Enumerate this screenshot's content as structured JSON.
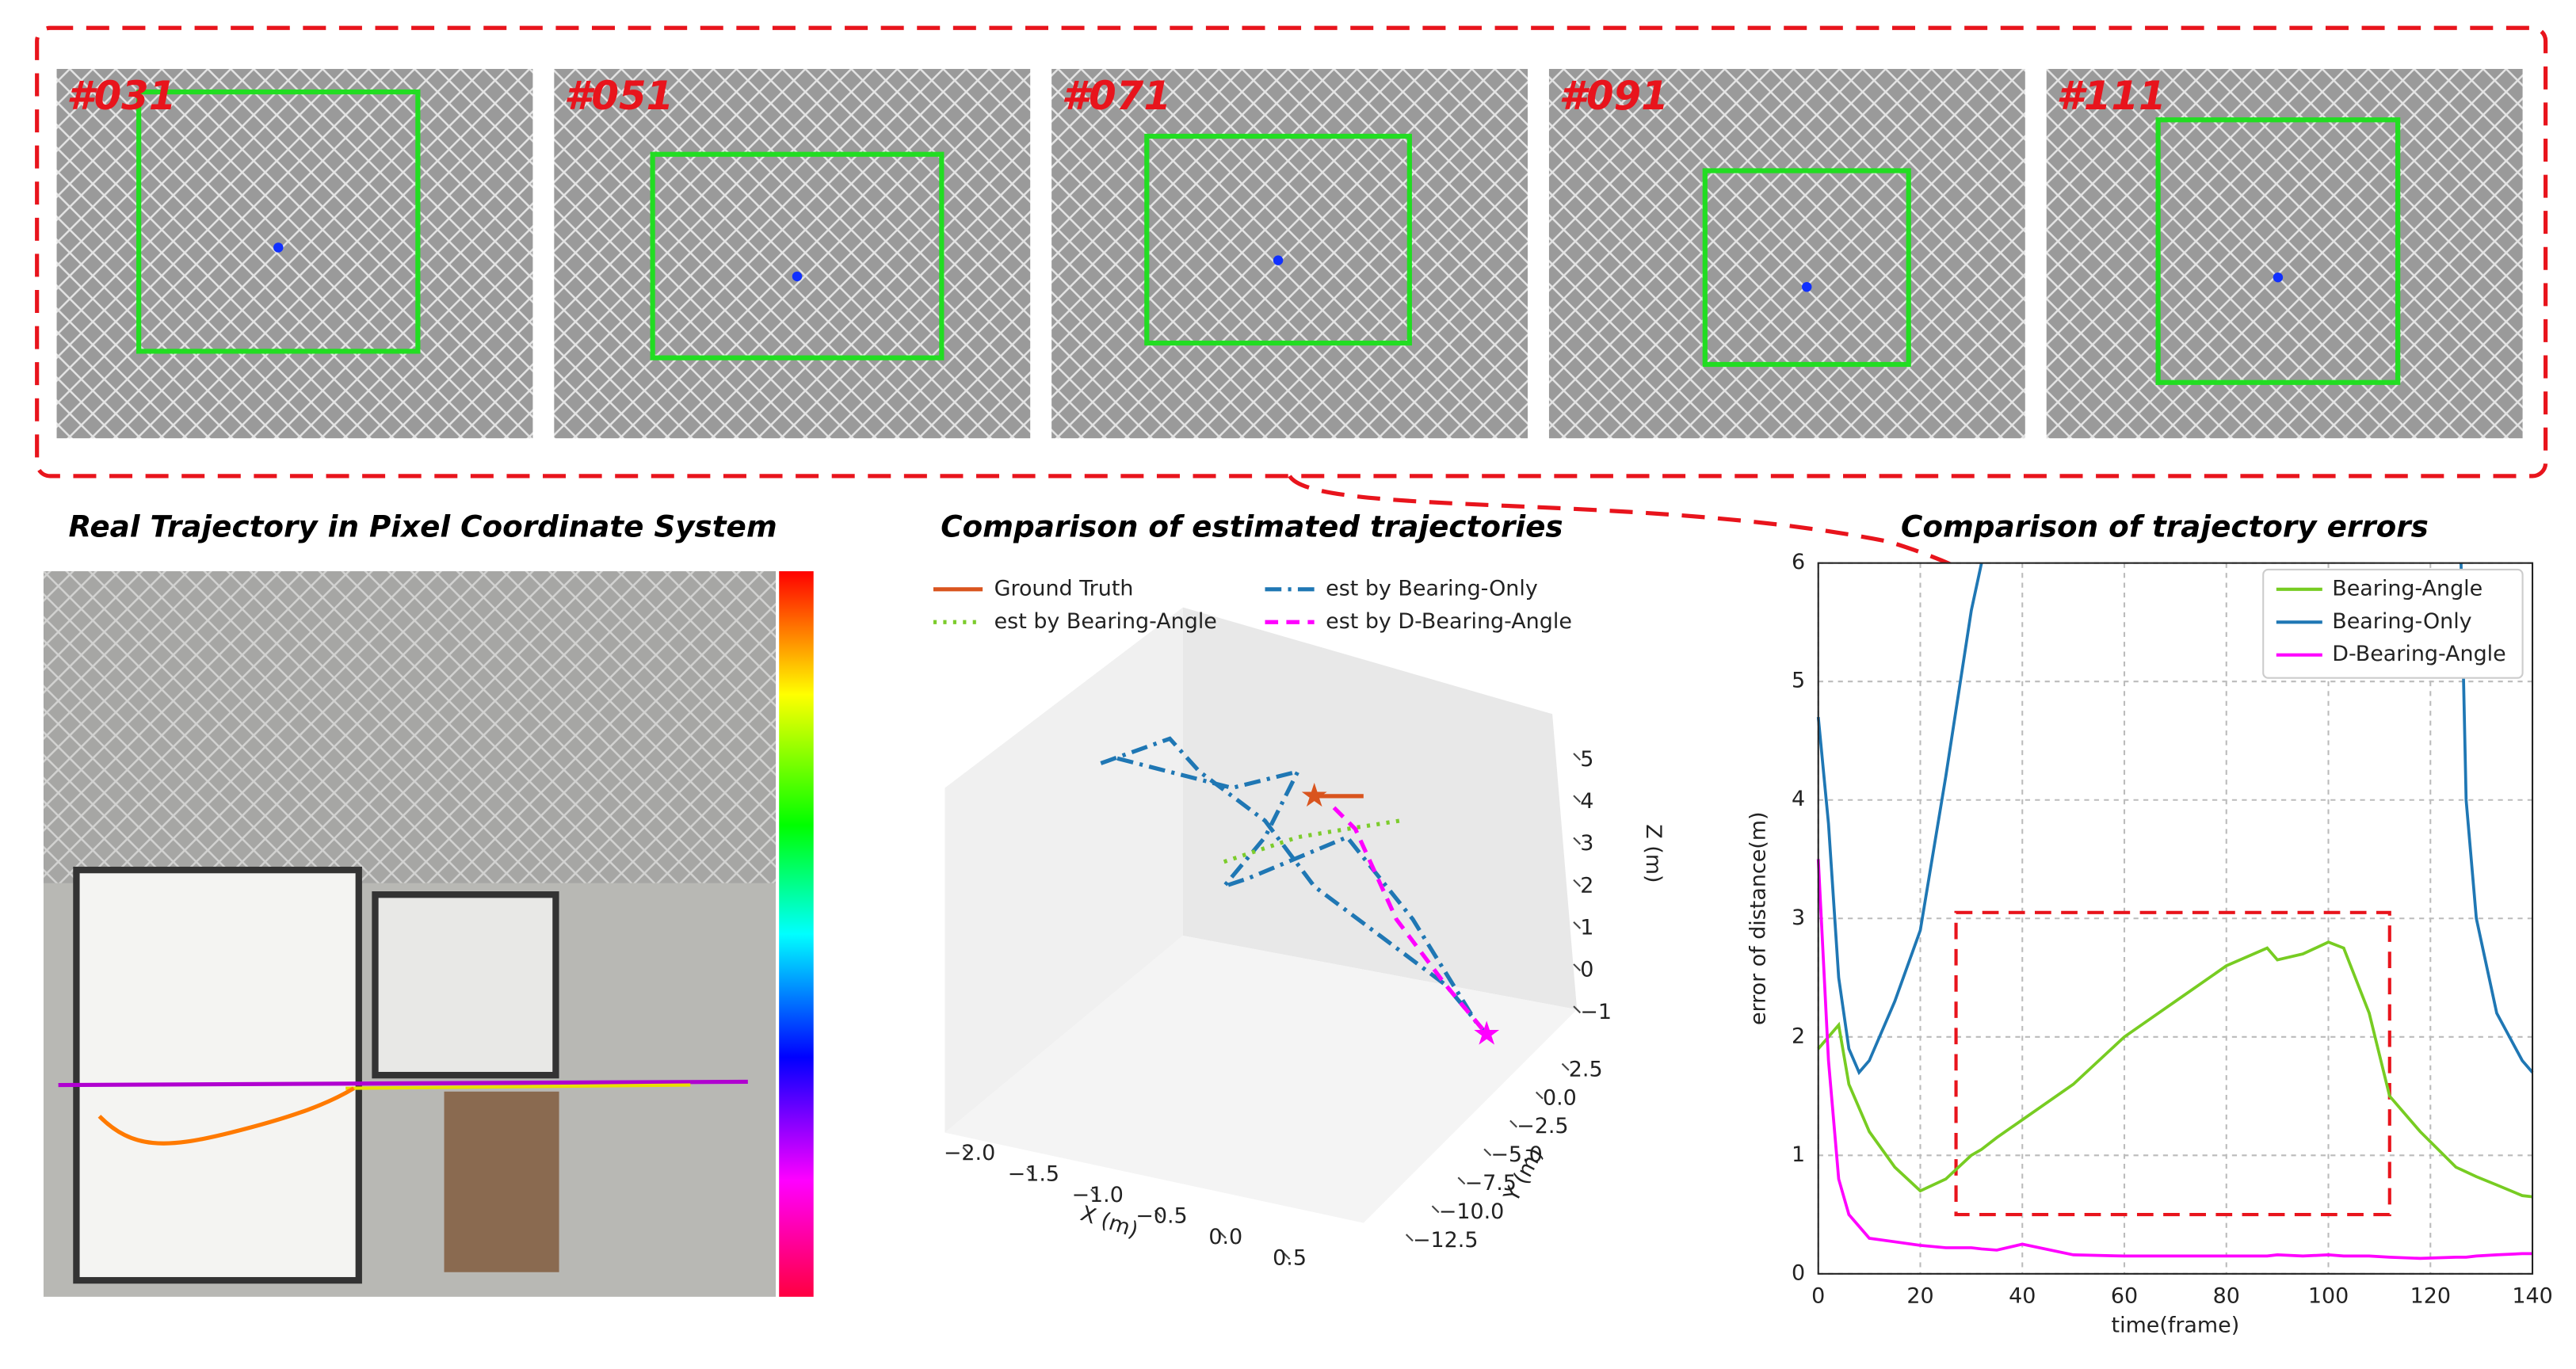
{
  "frames": [
    {
      "label": "#031"
    },
    {
      "label": "#051"
    },
    {
      "label": "#071"
    },
    {
      "label": "#091"
    },
    {
      "label": "#111"
    }
  ],
  "pixel_panel": {
    "title": "Real Trajectory in Pixel Coordinate System"
  },
  "chart_data": [
    {
      "type": "line3d",
      "title": "Comparison of estimated trajectories",
      "xlabel": "X (m)",
      "ylabel": "Y (m)",
      "zlabel": "Z (m)",
      "xlim": [
        -2.0,
        0.5
      ],
      "xticks": [
        {
          "value": -2.0,
          "label": "−2.0"
        },
        {
          "value": -1.5,
          "label": "−1.5"
        },
        {
          "value": -1.0,
          "label": "−1.0"
        },
        {
          "value": -0.5,
          "label": "−0.5"
        },
        {
          "value": 0.0,
          "label": "0.0"
        },
        {
          "value": 0.5,
          "label": "0.5"
        }
      ],
      "ylim": [
        -12.5,
        2.5
      ],
      "yticks": [
        {
          "value": 2.5,
          "label": "2.5"
        },
        {
          "value": 0.0,
          "label": "0.0"
        },
        {
          "value": -2.5,
          "label": "−2.5"
        },
        {
          "value": -5.0,
          "label": "−5.0"
        },
        {
          "value": -7.5,
          "label": "−7.5"
        },
        {
          "value": -10.0,
          "label": "−10.0"
        },
        {
          "value": -12.5,
          "label": "−12.5"
        }
      ],
      "zlim": [
        -1,
        5
      ],
      "zticks": [
        5,
        4,
        3,
        2,
        1,
        0,
        {
          "value": -1,
          "label": "−1"
        }
      ],
      "series": [
        {
          "name": "Ground Truth",
          "color": "#d9541e",
          "style": "solid"
        },
        {
          "name": "est by Bearing-Angle",
          "color": "#7ccc2c",
          "style": "dotted"
        },
        {
          "name": "est by Bearing-Only",
          "color": "#1f77b4",
          "style": "dashdot"
        },
        {
          "name": "est by D-Bearing-Angle",
          "color": "#ff00ff",
          "style": "dashed"
        }
      ]
    },
    {
      "type": "line",
      "title": "Comparison of trajectory errors",
      "xlabel": "time(frame)",
      "ylabel": "error of distance(m)",
      "x": [
        0,
        2,
        4,
        6,
        8,
        10,
        15,
        20,
        25,
        30,
        32,
        35,
        40,
        50,
        60,
        70,
        80,
        88,
        90,
        95,
        100,
        103,
        108,
        112,
        118,
        125,
        126,
        127,
        129,
        133,
        138,
        140
      ],
      "xlim": [
        0,
        140
      ],
      "xticks": [
        0,
        20,
        40,
        60,
        80,
        100,
        120,
        140
      ],
      "ylim": [
        0,
        6
      ],
      "yticks": [
        0,
        1,
        2,
        3,
        4,
        5,
        6
      ],
      "grid": true,
      "legend": "upper right",
      "series": [
        {
          "name": "Bearing-Angle",
          "color": "#77cc22",
          "values": [
            1.9,
            2.0,
            2.1,
            1.6,
            1.4,
            1.2,
            0.9,
            0.7,
            0.8,
            1.0,
            1.05,
            1.15,
            1.3,
            1.6,
            2.0,
            2.3,
            2.6,
            2.75,
            2.65,
            2.7,
            2.8,
            2.75,
            2.2,
            1.5,
            1.2,
            0.9,
            0.88,
            0.86,
            0.82,
            0.75,
            0.66,
            0.65
          ]
        },
        {
          "name": "Bearing-Only",
          "color": "#1f77b4",
          "values": [
            4.7,
            3.8,
            2.5,
            1.9,
            1.7,
            1.8,
            2.3,
            2.9,
            4.2,
            5.6,
            6.0,
            null,
            null,
            null,
            null,
            null,
            null,
            null,
            null,
            null,
            null,
            null,
            null,
            null,
            null,
            null,
            6.0,
            4.0,
            3.0,
            2.2,
            1.8,
            1.7
          ]
        },
        {
          "name": "D-Bearing-Angle",
          "color": "#ff00ff",
          "values": [
            3.5,
            1.8,
            0.8,
            0.5,
            0.4,
            0.3,
            0.27,
            0.24,
            0.22,
            0.22,
            0.21,
            0.2,
            0.25,
            0.16,
            0.15,
            0.15,
            0.15,
            0.15,
            0.16,
            0.15,
            0.16,
            0.15,
            0.15,
            0.14,
            0.13,
            0.14,
            0.14,
            0.14,
            0.15,
            0.16,
            0.17,
            0.17
          ]
        }
      ]
    }
  ]
}
